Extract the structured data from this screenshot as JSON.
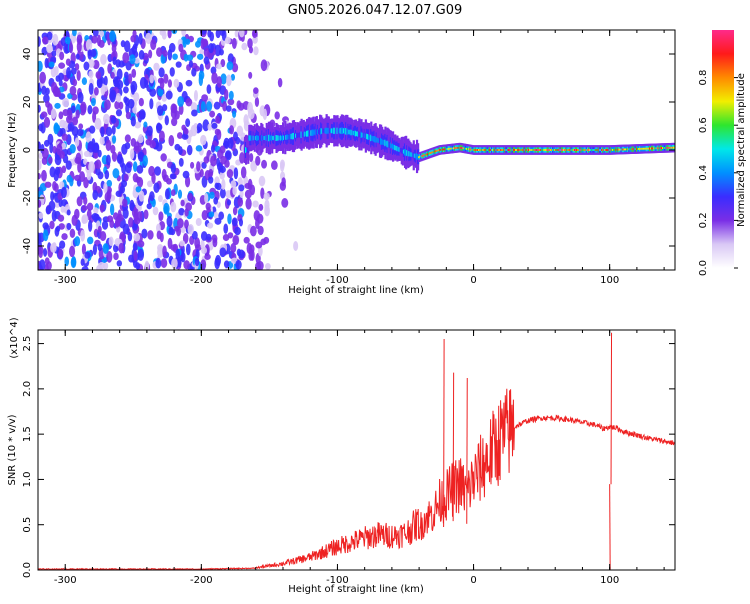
{
  "title": "GN05.2026.047.12.07.G09",
  "chart_data": [
    {
      "type": "heatmap",
      "title": "GN05.2026.047.12.07.G09",
      "xlabel": "Height of straight line (km)",
      "ylabel": "Frequency (Hz)",
      "xlim": [
        -320,
        148
      ],
      "ylim": [
        -50,
        50
      ],
      "xticks": [
        -300,
        -200,
        -100,
        0,
        100
      ],
      "yticks": [
        -40,
        -20,
        0,
        20,
        40
      ],
      "colorbar": {
        "label": "Normalized spectral amplitude",
        "range": [
          0.0,
          1.0
        ],
        "ticks": [
          "0.0",
          "0.2",
          "0.4",
          "0.6",
          "0.8"
        ],
        "colormap": [
          "#ffffff",
          "#d9c8f5",
          "#7a2ee6",
          "#3a2dff",
          "#0090ff",
          "#00e8e8",
          "#2ee62e",
          "#f2ee00",
          "#ff8a00",
          "#ff1a1a",
          "#ff2a8a"
        ]
      },
      "ridge": {
        "x": [
          -165,
          -140,
          -120,
          -110,
          -95,
          -80,
          -65,
          -50,
          -40,
          -25,
          -10,
          0,
          20,
          60,
          90,
          100,
          148
        ],
        "freq": [
          5,
          5,
          7,
          8,
          8,
          6,
          3,
          -1,
          -3,
          0,
          1,
          0,
          0,
          0,
          0,
          0,
          1
        ]
      },
      "noise_region": {
        "x_from": -320,
        "x_to": -130
      }
    },
    {
      "type": "line",
      "xlabel": "Height of straight line (km)",
      "ylabel": "SNR (10 * v/v)",
      "y_multiplier": "(x10^4)",
      "xlim": [
        -320,
        148
      ],
      "ylim": [
        0,
        2.65
      ],
      "xticks": [
        -300,
        -200,
        -100,
        0,
        100
      ],
      "yticks": [
        "0.0",
        "0.5",
        "1.0",
        "1.5",
        "2.0",
        "2.5"
      ],
      "color": "#ee2222",
      "x": [
        -320,
        -200,
        -160,
        -150,
        -140,
        -130,
        -120,
        -110,
        -100,
        -90,
        -80,
        -70,
        -60,
        -50,
        -40,
        -35,
        -30,
        -25,
        -20,
        -15,
        -10,
        -5,
        0,
        10,
        20,
        30,
        40,
        50,
        60,
        70,
        80,
        90,
        95,
        100,
        105,
        110,
        120,
        130,
        148
      ],
      "y": [
        0.01,
        0.01,
        0.02,
        0.04,
        0.06,
        0.09,
        0.12,
        0.17,
        0.22,
        0.26,
        0.3,
        0.33,
        0.32,
        0.34,
        0.45,
        0.58,
        0.62,
        0.75,
        0.82,
        0.9,
        0.95,
        0.85,
        1.0,
        1.22,
        1.45,
        1.58,
        1.65,
        1.68,
        1.68,
        1.66,
        1.63,
        1.6,
        1.56,
        1.58,
        1.57,
        1.53,
        1.49,
        1.45,
        1.4
      ],
      "spikes": [
        {
          "x": -22,
          "y": 2.55
        },
        {
          "x": -15,
          "y": 2.18
        },
        {
          "x": -5,
          "y": 2.12
        },
        {
          "x": 100,
          "y": 0.0
        },
        {
          "x": 101,
          "y": 2.62
        }
      ]
    }
  ]
}
